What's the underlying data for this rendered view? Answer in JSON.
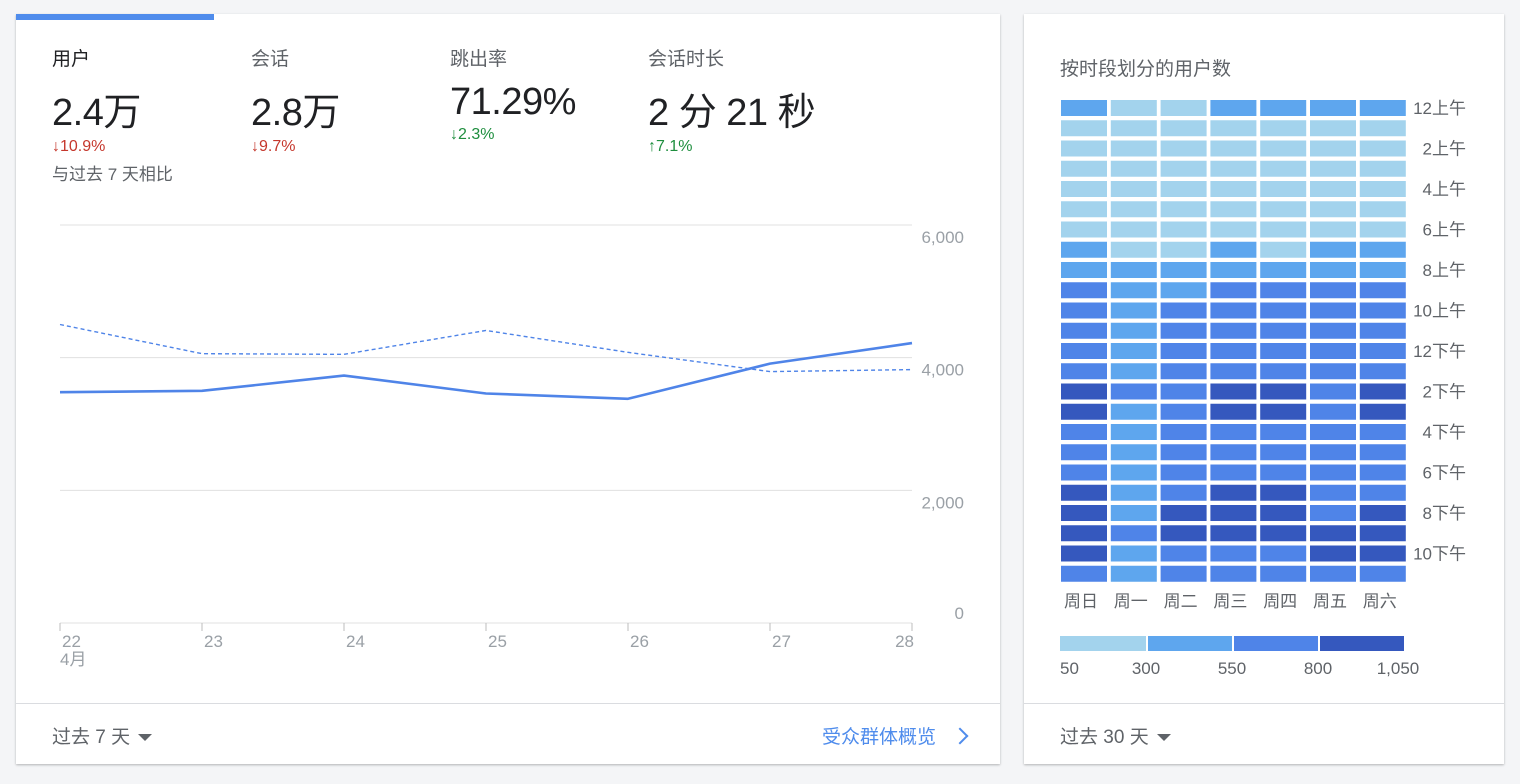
{
  "metrics": [
    {
      "label": "用户",
      "value": "2.4万",
      "change_dir": "down",
      "change": "10.9%",
      "active": true
    },
    {
      "label": "会话",
      "value": "2.8万",
      "change_dir": "down",
      "change": "9.7%",
      "active": false
    },
    {
      "label": "跳出率",
      "value": "71.29%",
      "change_dir": "down",
      "change": "2.3%",
      "active": false
    },
    {
      "label": "会话时长",
      "value": "2 分 21 秒",
      "change_dir": "up",
      "change": "7.1%",
      "active": false
    }
  ],
  "compare_text": "与过去 7 天相比",
  "left_footer": {
    "range": "过去 7 天",
    "link": "受众群体概览"
  },
  "right_card": {
    "title": "按时段划分的用户数",
    "footer_range": "过去 30 天"
  },
  "colors": {
    "accent": "#4f8cec",
    "down": "#c5372c",
    "up": "#1e8e3e"
  },
  "icons": {
    "down": "arrow-down-icon",
    "up": "arrow-up-icon",
    "caret": "caret-down-icon",
    "chevron": "chevron-right-icon"
  },
  "chart_data": [
    {
      "type": "line",
      "x": [
        "22",
        "23",
        "24",
        "25",
        "26",
        "27",
        "28"
      ],
      "x_sublabel": "4月",
      "yticks": [
        "0",
        "2,000",
        "4,000",
        "6,000"
      ],
      "ylim": [
        0,
        6000
      ],
      "grid": true,
      "series": [
        {
          "values": [
            3480,
            3500,
            3730,
            3460,
            3380,
            3910,
            4220
          ],
          "style": "solid"
        },
        {
          "values": [
            4500,
            4060,
            4050,
            4410,
            4080,
            3790,
            3820
          ],
          "style": "dashed"
        }
      ]
    },
    {
      "type": "heatmap",
      "columns": [
        "周日",
        "周一",
        "周二",
        "周三",
        "周四",
        "周五",
        "周六"
      ],
      "row_labels": [
        "12上午",
        "2上午",
        "4上午",
        "6上午",
        "8上午",
        "10上午",
        "12下午",
        "2下午",
        "4下午",
        "6下午",
        "8下午",
        "10下午"
      ],
      "rows": 24,
      "legend": [
        "50",
        "300",
        "550",
        "800",
        "1,050"
      ],
      "levels": [
        "#a3d3ed",
        "#5ea6ee",
        "#4f84e8",
        "#3558be"
      ],
      "cells": [
        [
          1,
          0,
          0,
          1,
          1,
          1,
          1
        ],
        [
          0,
          0,
          0,
          0,
          0,
          0,
          0
        ],
        [
          0,
          0,
          0,
          0,
          0,
          0,
          0
        ],
        [
          0,
          0,
          0,
          0,
          0,
          0,
          0
        ],
        [
          0,
          0,
          0,
          0,
          0,
          0,
          0
        ],
        [
          0,
          0,
          0,
          0,
          0,
          0,
          0
        ],
        [
          0,
          0,
          0,
          0,
          0,
          0,
          0
        ],
        [
          1,
          0,
          0,
          1,
          0,
          1,
          1
        ],
        [
          1,
          1,
          1,
          1,
          1,
          1,
          1
        ],
        [
          2,
          1,
          1,
          2,
          2,
          2,
          2
        ],
        [
          2,
          1,
          2,
          2,
          2,
          2,
          2
        ],
        [
          2,
          1,
          2,
          2,
          2,
          2,
          2
        ],
        [
          2,
          1,
          2,
          2,
          2,
          2,
          2
        ],
        [
          2,
          1,
          2,
          2,
          2,
          2,
          2
        ],
        [
          3,
          2,
          2,
          3,
          3,
          2,
          3
        ],
        [
          3,
          1,
          2,
          3,
          3,
          2,
          3
        ],
        [
          2,
          1,
          2,
          2,
          2,
          2,
          2
        ],
        [
          2,
          1,
          2,
          2,
          2,
          2,
          2
        ],
        [
          2,
          1,
          2,
          2,
          2,
          2,
          2
        ],
        [
          3,
          1,
          2,
          3,
          3,
          2,
          2
        ],
        [
          3,
          1,
          3,
          3,
          3,
          2,
          3
        ],
        [
          3,
          2,
          3,
          3,
          3,
          3,
          3
        ],
        [
          3,
          1,
          2,
          2,
          2,
          3,
          3
        ],
        [
          2,
          1,
          2,
          2,
          2,
          2,
          2
        ]
      ]
    }
  ]
}
